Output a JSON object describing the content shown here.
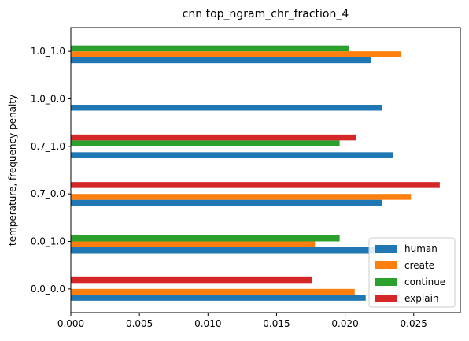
{
  "chart_data": {
    "type": "bar",
    "orientation": "horizontal",
    "title": "cnn top_ngram_chr_fraction_4",
    "xlabel": "",
    "ylabel": "temperature, frequency penalty",
    "categories": [
      "0.0_0.0",
      "0.0_1.0",
      "0.7_0.0",
      "0.7_1.0",
      "1.0_0.0",
      "1.0_1.0"
    ],
    "xlim": [
      0,
      0.0284
    ],
    "xticks": [
      0.0,
      0.005,
      0.01,
      0.015,
      0.02,
      0.025
    ],
    "xtick_labels": [
      "0.000",
      "0.005",
      "0.010",
      "0.015",
      "0.020",
      "0.025"
    ],
    "grid": false,
    "legend_position": "lower-right",
    "series": [
      {
        "name": "human",
        "color": "#1f77b4",
        "values": [
          0.0215,
          0.0222,
          0.0227,
          0.0235,
          0.0227,
          0.0219
        ]
      },
      {
        "name": "create",
        "color": "#ff7f0e",
        "values": [
          0.0207,
          0.0178,
          0.0248,
          null,
          null,
          0.0241
        ]
      },
      {
        "name": "continue",
        "color": "#2ca02c",
        "values": [
          null,
          0.0196,
          null,
          0.0196,
          null,
          0.0203
        ]
      },
      {
        "name": "explain",
        "color": "#d62728",
        "values": [
          0.0176,
          null,
          0.0269,
          0.0208,
          null,
          null
        ]
      }
    ]
  }
}
